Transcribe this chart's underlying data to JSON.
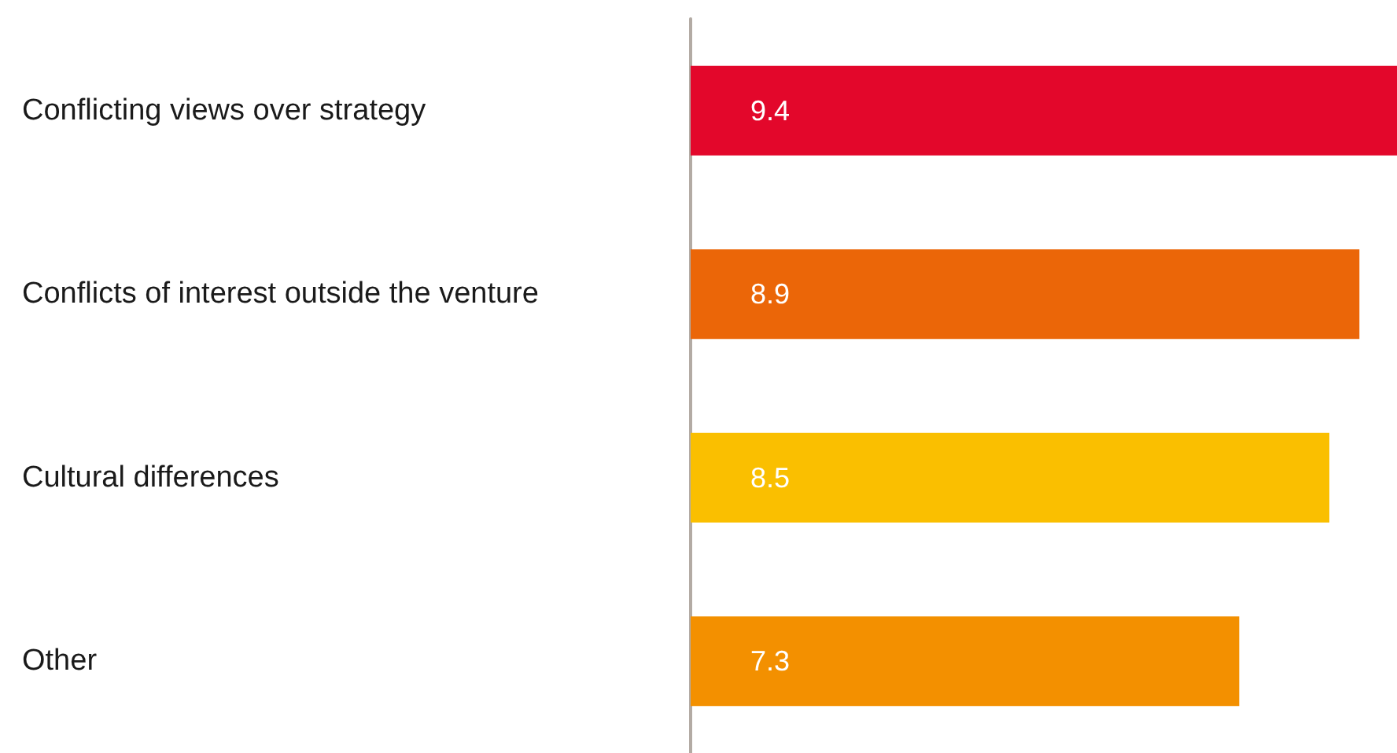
{
  "chart_data": {
    "type": "bar",
    "orientation": "horizontal",
    "categories": [
      "Conflicting views over strategy",
      "Conflicts of interest outside the venture",
      "Cultural differences",
      "Other"
    ],
    "values": [
      9.4,
      8.9,
      8.5,
      7.3
    ],
    "colors": [
      "#e3072b",
      "#eb6608",
      "#fabf00",
      "#f39000"
    ],
    "data_labels": true
  }
}
